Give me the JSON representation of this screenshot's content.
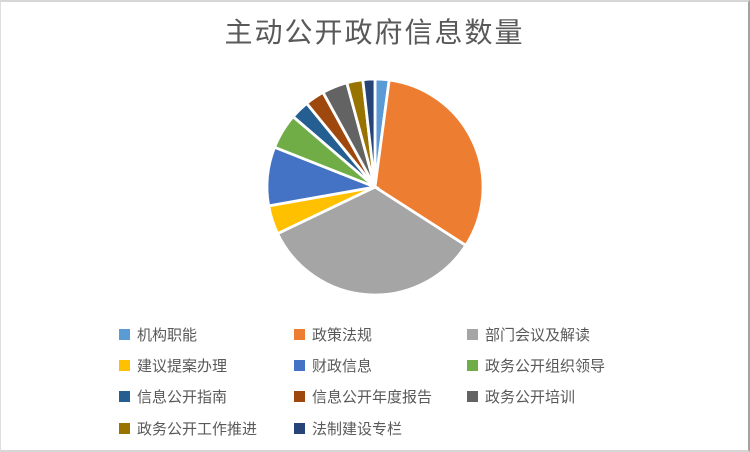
{
  "chart": {
    "title": "主动公开政府信息数量"
  },
  "chart_data": {
    "type": "pie",
    "title": "主动公开政府信息数量",
    "values_are": "estimated_percent_share",
    "start_angle_deg": 0,
    "direction": "clockwise",
    "legend_position": "bottom",
    "slice_separator_color": "#FFFFFF",
    "slices": [
      {
        "label": "机构职能",
        "value": 2.1,
        "color": "#5B9BD5"
      },
      {
        "label": "政策法规",
        "value": 32.0,
        "color": "#ED7D31"
      },
      {
        "label": "部门会议及解读",
        "value": 33.8,
        "color": "#A5A5A5"
      },
      {
        "label": "建议提案办理",
        "value": 4.3,
        "color": "#FFC000"
      },
      {
        "label": "财政信息",
        "value": 8.8,
        "color": "#4472C4"
      },
      {
        "label": "政务公开组织领导",
        "value": 5.3,
        "color": "#70AD47"
      },
      {
        "label": "信息公开指南",
        "value": 2.8,
        "color": "#255E91"
      },
      {
        "label": "信息公开年度报告",
        "value": 2.9,
        "color": "#9E480E"
      },
      {
        "label": "政务公开培训",
        "value": 3.8,
        "color": "#636363"
      },
      {
        "label": "政务公开工作推进",
        "value": 2.4,
        "color": "#997300"
      },
      {
        "label": "法制建设专栏",
        "value": 1.8,
        "color": "#264478"
      }
    ]
  },
  "style": {
    "title_color": "#595959",
    "legend_text_color": "#595959",
    "frame_border_color": "#D6D6D6",
    "background_color": "#FFFFFF"
  }
}
